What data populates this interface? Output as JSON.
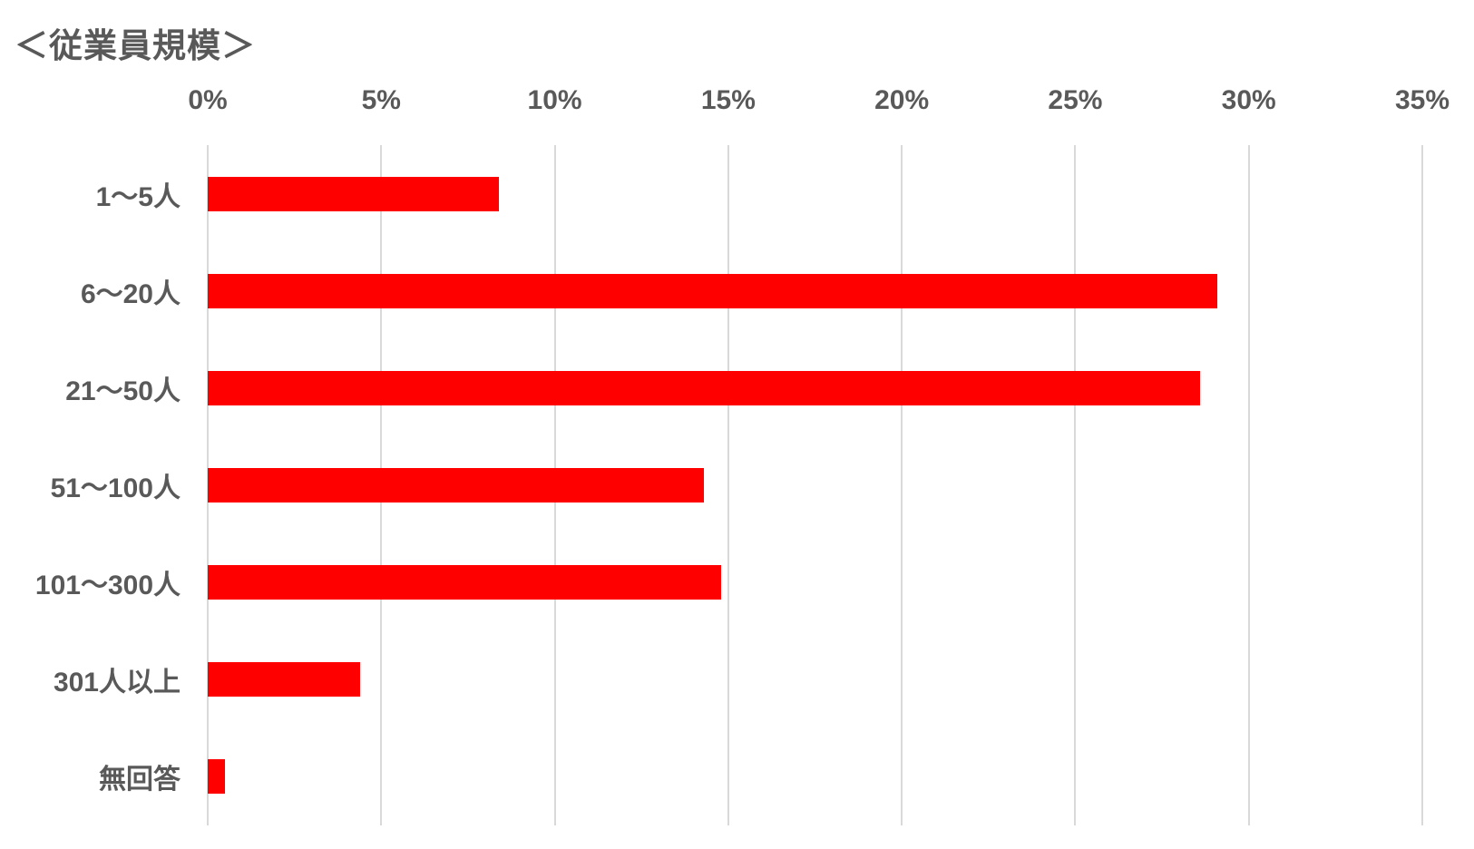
{
  "title": "＜従業員規模＞",
  "colors": {
    "bar": "#ff0000",
    "text": "#595959",
    "gridline": "#d9d9d9",
    "background": "#ffffff"
  },
  "chart_data": {
    "type": "bar",
    "orientation": "horizontal",
    "title": "＜従業員規模＞",
    "categories": [
      "1〜5人",
      "6〜20人",
      "21〜50人",
      "51〜100人",
      "101〜300人",
      "301人以上",
      "無回答"
    ],
    "values": [
      8.4,
      29.1,
      28.6,
      14.3,
      14.8,
      4.4,
      0.5
    ],
    "unit": "%",
    "xlabel": "",
    "ylabel": "",
    "x_axis": {
      "min": 0,
      "max": 35,
      "step": 5,
      "tick_labels": [
        "0%",
        "5%",
        "10%",
        "15%",
        "20%",
        "25%",
        "30%",
        "35%"
      ]
    },
    "grid": true,
    "legend": false
  }
}
